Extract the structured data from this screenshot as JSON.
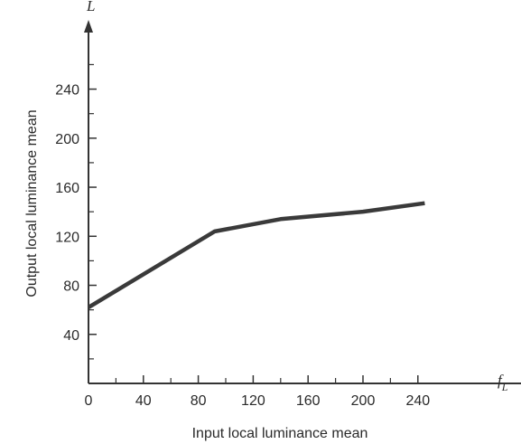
{
  "chart_data": {
    "type": "line",
    "xlabel": "Input local luminance mean",
    "ylabel": "Output local luminance mean",
    "x_axis_symbol": "f",
    "x_axis_symbol_sub": "L",
    "y_axis_symbol": "L",
    "xlim": [
      0,
      265
    ],
    "ylim": [
      0,
      295
    ],
    "x_ticks": [
      0,
      40,
      80,
      120,
      160,
      200,
      240
    ],
    "y_ticks": [
      40,
      80,
      120,
      160,
      200,
      240
    ],
    "x_tick_labels": [
      "0",
      "40",
      "80",
      "120",
      "160",
      "200",
      "240"
    ],
    "y_tick_labels": [
      "40",
      "80",
      "120",
      "160",
      "200",
      "240"
    ],
    "x_minor_ticks": [
      20,
      60,
      100,
      140,
      180,
      220
    ],
    "y_minor_ticks": [
      20,
      60,
      100,
      140,
      180,
      220,
      260
    ],
    "grid": false,
    "series": [
      {
        "x": [
          0,
          92,
          140,
          200,
          245
        ],
        "y": [
          62,
          124,
          134,
          140,
          147
        ]
      }
    ]
  }
}
